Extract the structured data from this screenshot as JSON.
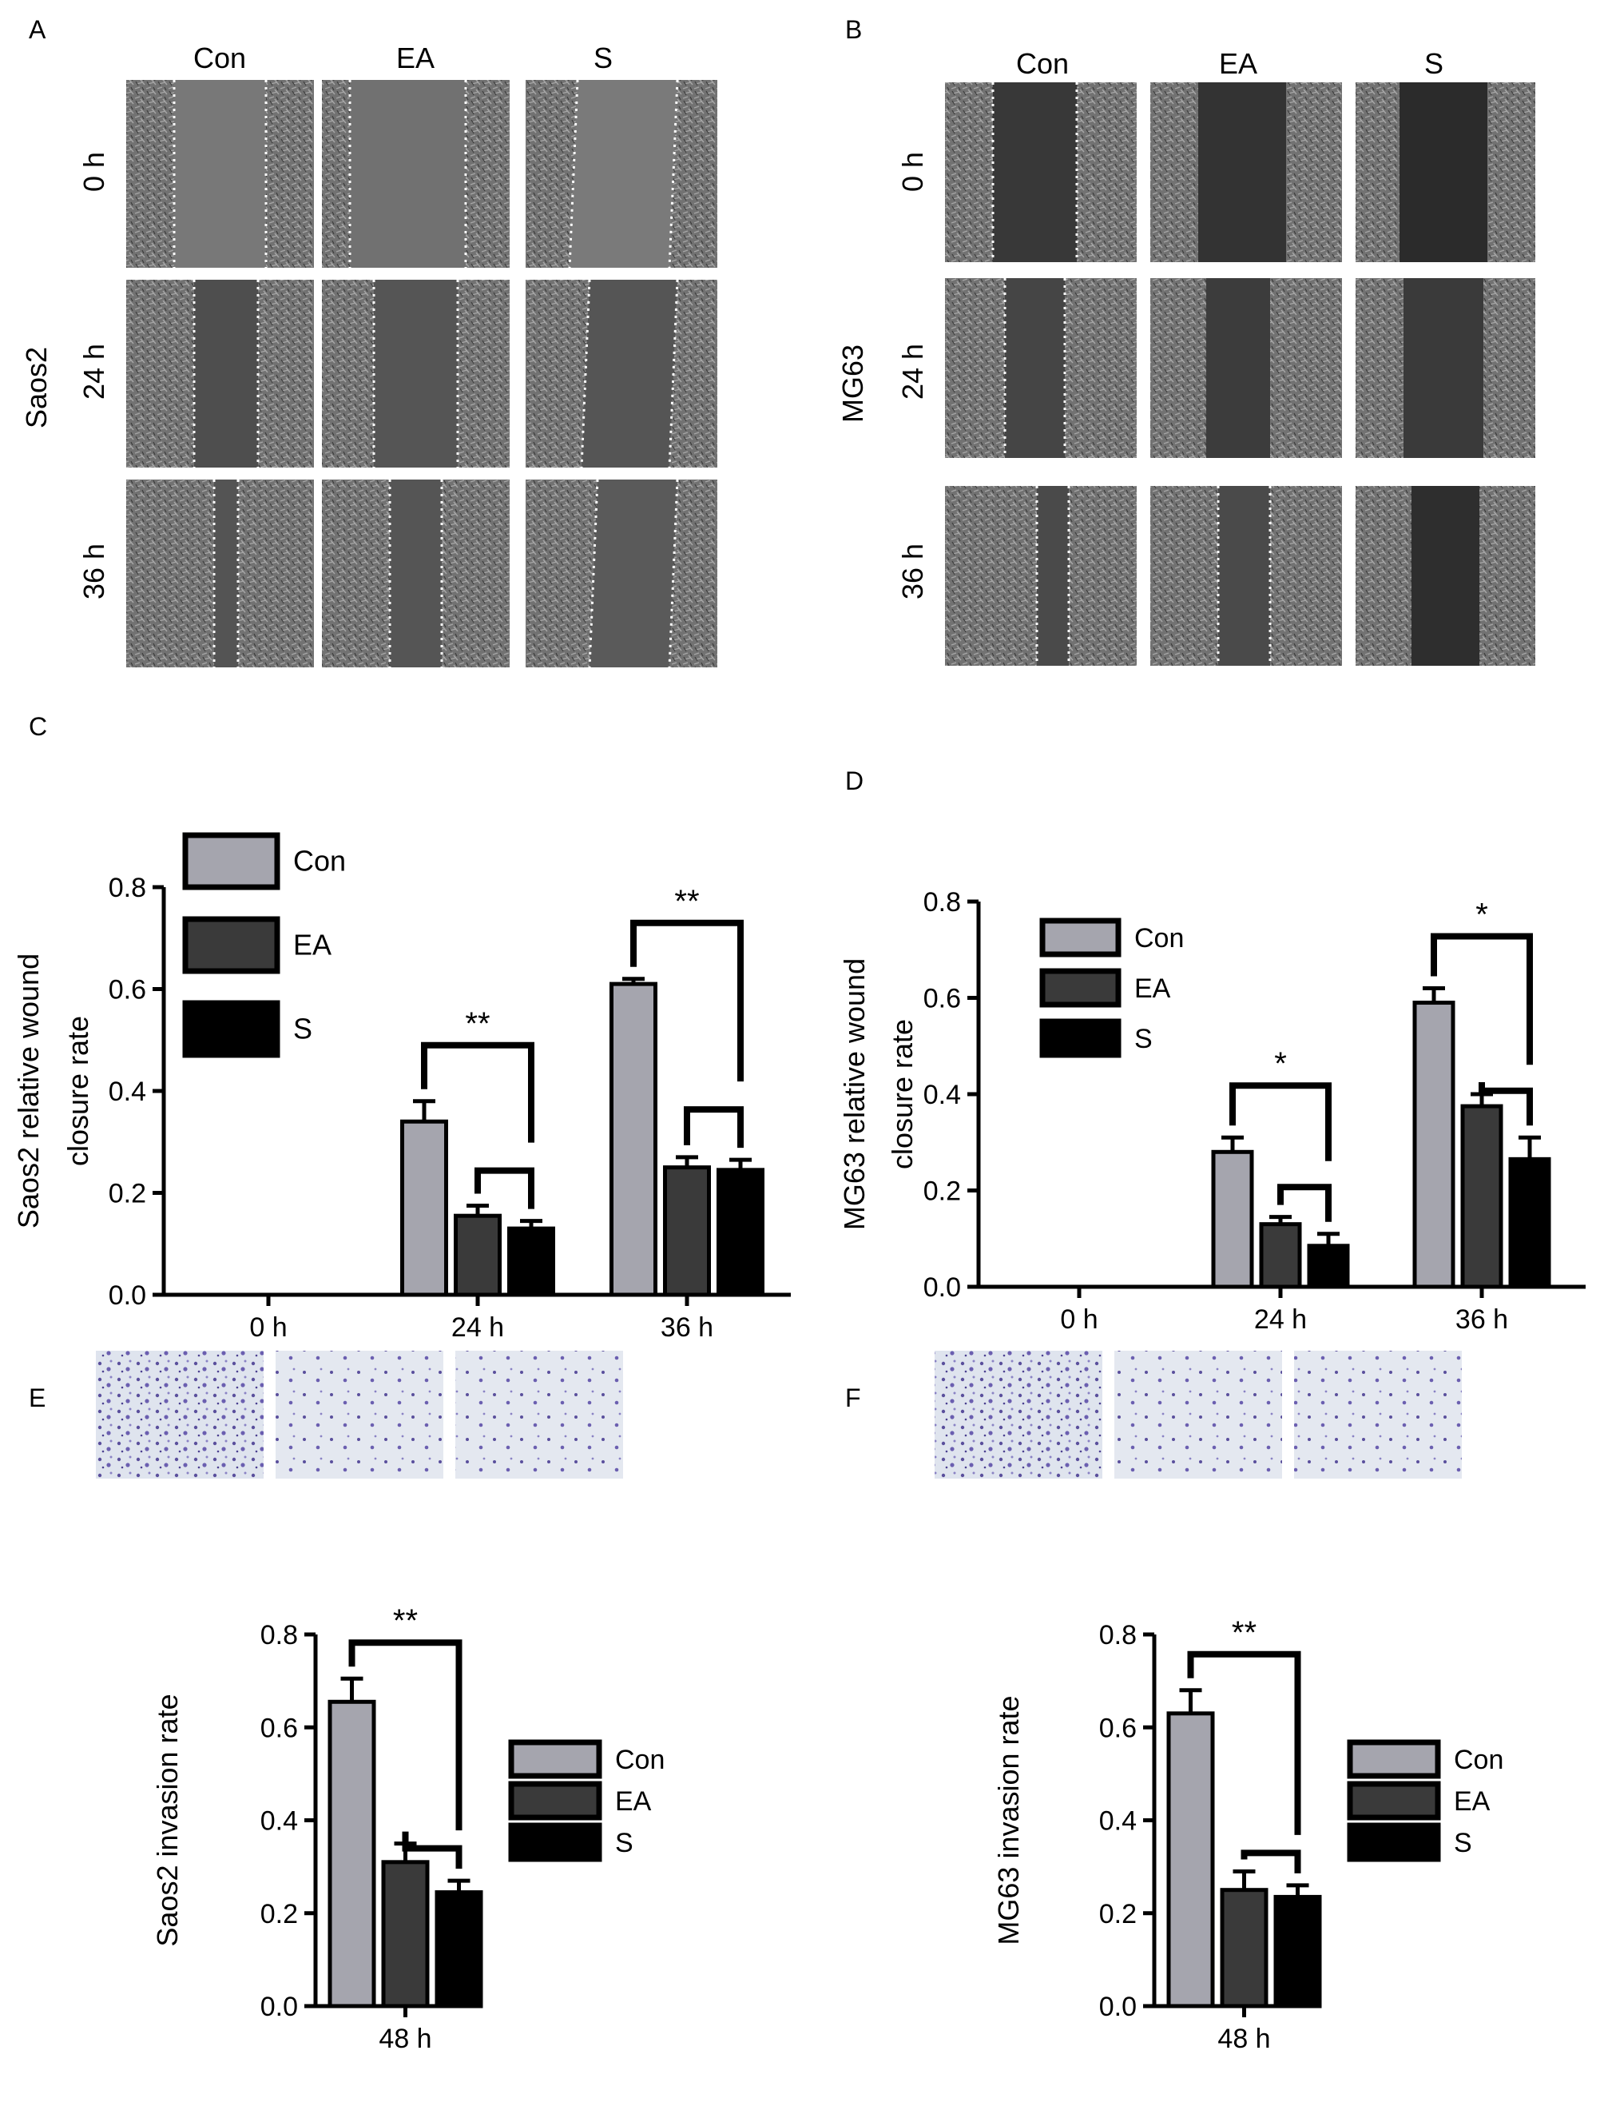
{
  "panels": {
    "a": {
      "letter": "A",
      "cell_line": "Saos2",
      "columns": [
        "Con",
        "EA",
        "S"
      ],
      "rows": [
        "0 h",
        "24 h",
        "36 h"
      ]
    },
    "b": {
      "letter": "B",
      "cell_line": "MG63",
      "columns": [
        "Con",
        "EA",
        "S"
      ],
      "rows": [
        "0 h",
        "24 h",
        "36 h"
      ]
    },
    "c": {
      "letter": "C"
    },
    "d": {
      "letter": "D"
    },
    "e": {
      "letter": "E"
    },
    "f": {
      "letter": "F"
    }
  },
  "colors": {
    "Con": "#a5a5ae",
    "EA": "#3a3a3a",
    "S": "#000000",
    "micrograph": "#6f6f6f",
    "gap": "#4e4e4e",
    "stain_bg": "#dfe4ee",
    "stain": "#5a4f9c"
  },
  "chart_data": [
    {
      "panel": "C",
      "type": "bar",
      "title": "",
      "xlabel": "",
      "ylabel": [
        "Saos2 relative wound",
        "closure rate"
      ],
      "categories": [
        "0 h",
        "24 h",
        "36 h"
      ],
      "series": [
        {
          "name": "Con",
          "values": [
            0,
            0.34,
            0.61
          ],
          "errors": [
            0,
            0.04,
            0.01
          ]
        },
        {
          "name": "EA",
          "values": [
            0,
            0.155,
            0.25
          ],
          "errors": [
            0,
            0.02,
            0.02
          ]
        },
        {
          "name": "S",
          "values": [
            0,
            0.13,
            0.245
          ],
          "errors": [
            0,
            0.015,
            0.02
          ]
        }
      ],
      "ylim": [
        0,
        0.8
      ],
      "yticks": [
        "0.0",
        "0.2",
        "0.4",
        "0.6",
        "0.8"
      ],
      "legend": {
        "position": "top-left",
        "entries": [
          "Con",
          "EA",
          "S"
        ]
      },
      "significance": [
        {
          "category": "24 h",
          "label": "**"
        },
        {
          "category": "36 h",
          "label": "**"
        }
      ],
      "grid": false
    },
    {
      "panel": "D",
      "type": "bar",
      "title": "",
      "xlabel": "",
      "ylabel": [
        "MG63 relative wound",
        "closure rate"
      ],
      "categories": [
        "0 h",
        "24 h",
        "36 h"
      ],
      "series": [
        {
          "name": "Con",
          "values": [
            0,
            0.28,
            0.59
          ],
          "errors": [
            0,
            0.03,
            0.03
          ]
        },
        {
          "name": "EA",
          "values": [
            0,
            0.13,
            0.375
          ],
          "errors": [
            0,
            0.015,
            0.025
          ]
        },
        {
          "name": "S",
          "values": [
            0,
            0.085,
            0.265
          ],
          "errors": [
            0,
            0.025,
            0.045
          ]
        }
      ],
      "ylim": [
        0,
        0.8
      ],
      "yticks": [
        "0.0",
        "0.2",
        "0.4",
        "0.6",
        "0.8"
      ],
      "legend": {
        "position": "top-left",
        "entries": [
          "Con",
          "EA",
          "S"
        ]
      },
      "significance": [
        {
          "category": "24 h",
          "label": "*"
        },
        {
          "category": "36 h",
          "label": "*"
        }
      ],
      "grid": false
    },
    {
      "panel": "E",
      "type": "bar",
      "title": "",
      "xlabel": "",
      "ylabel": [
        "Saos2 invasion rate"
      ],
      "categories": [
        "48 h"
      ],
      "series": [
        {
          "name": "Con",
          "values": [
            0.655
          ],
          "errors": [
            0.05
          ]
        },
        {
          "name": "EA",
          "values": [
            0.31
          ],
          "errors": [
            0.04
          ]
        },
        {
          "name": "S",
          "values": [
            0.245
          ],
          "errors": [
            0.025
          ]
        }
      ],
      "ylim": [
        0,
        0.8
      ],
      "yticks": [
        "0.0",
        "0.2",
        "0.4",
        "0.6",
        "0.8"
      ],
      "legend": {
        "position": "right",
        "entries": [
          "Con",
          "EA",
          "S"
        ]
      },
      "significance": [
        {
          "category": "48 h",
          "label": "**"
        }
      ],
      "grid": false
    },
    {
      "panel": "F",
      "type": "bar",
      "title": "",
      "xlabel": "",
      "ylabel": [
        "MG63 invasion rate"
      ],
      "categories": [
        "48 h"
      ],
      "series": [
        {
          "name": "Con",
          "values": [
            0.63
          ],
          "errors": [
            0.05
          ]
        },
        {
          "name": "EA",
          "values": [
            0.25
          ],
          "errors": [
            0.04
          ]
        },
        {
          "name": "S",
          "values": [
            0.235
          ],
          "errors": [
            0.025
          ]
        }
      ],
      "ylim": [
        0,
        0.8
      ],
      "yticks": [
        "0.0",
        "0.2",
        "0.4",
        "0.6",
        "0.8"
      ],
      "legend": {
        "position": "right",
        "entries": [
          "Con",
          "EA",
          "S"
        ]
      },
      "significance": [
        {
          "category": "48 h",
          "label": "**"
        }
      ],
      "grid": false
    }
  ]
}
